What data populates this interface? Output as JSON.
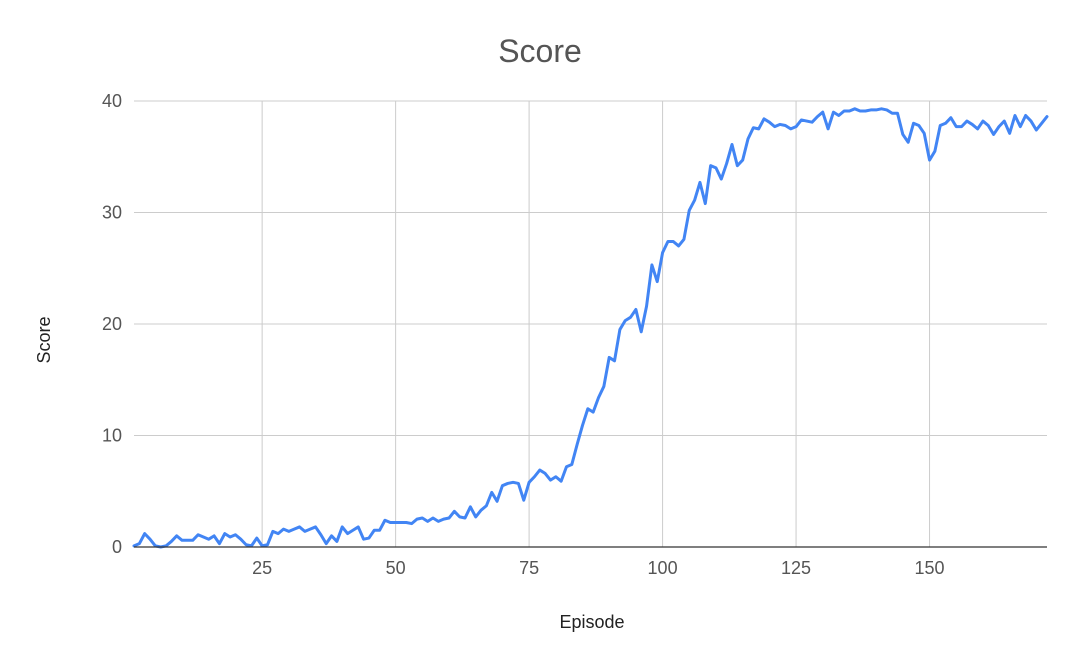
{
  "chart_data": {
    "type": "line",
    "title": "Score",
    "xlabel": "Episode",
    "ylabel": "Score",
    "xlim": [
      1,
      172
    ],
    "ylim": [
      0,
      40
    ],
    "x_ticks": [
      25,
      50,
      75,
      100,
      125,
      150
    ],
    "y_ticks": [
      0,
      10,
      20,
      30,
      40
    ],
    "grid": true,
    "legend": "none",
    "line_color": "#4285f4",
    "series": [
      {
        "x": [
          1,
          2,
          3,
          4,
          5,
          6,
          7,
          8,
          9,
          10,
          11,
          12,
          13,
          14,
          15,
          16,
          17,
          18,
          19,
          20,
          21,
          22,
          23,
          24,
          25,
          26,
          27,
          28,
          29,
          30,
          31,
          32,
          33,
          34,
          35,
          36,
          37,
          38,
          39,
          40,
          41,
          42,
          43,
          44,
          45,
          46,
          47,
          48,
          49,
          50,
          51,
          52,
          53,
          54,
          55,
          56,
          57,
          58,
          59,
          60,
          61,
          62,
          63,
          64,
          65,
          66,
          67,
          68,
          69,
          70,
          71,
          72,
          73,
          74,
          75,
          76,
          77,
          78,
          79,
          80,
          81,
          82,
          83,
          84,
          85,
          86,
          87,
          88,
          89,
          90,
          91,
          92,
          93,
          94,
          95,
          96,
          97,
          98,
          99,
          100,
          101,
          102,
          103,
          104,
          105,
          106,
          107,
          108,
          109,
          110,
          111,
          112,
          113,
          114,
          115,
          116,
          117,
          118,
          119,
          120,
          121,
          122,
          123,
          124,
          125,
          126,
          127,
          128,
          129,
          130,
          131,
          132,
          133,
          134,
          135,
          136,
          137,
          138,
          139,
          140,
          141,
          142,
          143,
          144,
          145,
          146,
          147,
          148,
          149,
          150,
          151,
          152,
          153,
          154,
          155,
          156,
          157,
          158,
          159,
          160,
          161,
          162,
          163,
          164,
          165,
          166,
          167,
          168,
          169,
          170,
          171,
          172
        ],
        "y": [
          0.1,
          0.3,
          1.2,
          0.7,
          0.1,
          0.0,
          0.1,
          0.5,
          1.0,
          0.6,
          0.6,
          0.6,
          1.1,
          0.9,
          0.7,
          1.0,
          0.3,
          1.2,
          0.9,
          1.1,
          0.7,
          0.2,
          0.1,
          0.8,
          0.1,
          0.2,
          1.4,
          1.2,
          1.6,
          1.4,
          1.6,
          1.8,
          1.4,
          1.6,
          1.8,
          1.1,
          0.3,
          1.0,
          0.5,
          1.8,
          1.2,
          1.5,
          1.8,
          0.7,
          0.8,
          1.5,
          1.5,
          2.4,
          2.2,
          2.2,
          2.2,
          2.2,
          2.1,
          2.5,
          2.6,
          2.3,
          2.6,
          2.3,
          2.5,
          2.6,
          3.2,
          2.7,
          2.6,
          3.6,
          2.7,
          3.3,
          3.7,
          4.9,
          4.1,
          5.5,
          5.7,
          5.8,
          5.7,
          4.2,
          5.8,
          6.3,
          6.9,
          6.6,
          6.0,
          6.3,
          5.9,
          7.2,
          7.4,
          9.2,
          10.9,
          12.4,
          12.1,
          13.4,
          14.4,
          17.0,
          16.7,
          19.5,
          20.3,
          20.6,
          21.3,
          19.3,
          21.6,
          25.3,
          23.8,
          26.4,
          27.4,
          27.4,
          27.0,
          27.6,
          30.2,
          31.1,
          32.7,
          30.8,
          34.2,
          34.0,
          33.0,
          34.4,
          36.1,
          34.2,
          34.7,
          36.6,
          37.6,
          37.5,
          38.4,
          38.1,
          37.7,
          37.9,
          37.8,
          37.5,
          37.7,
          38.3,
          38.2,
          38.1,
          38.6,
          39.0,
          37.5,
          39.0,
          38.7,
          39.1,
          39.1,
          39.3,
          39.1,
          39.1,
          39.2,
          39.2,
          39.3,
          39.2,
          38.9,
          38.9,
          37.0,
          36.3,
          38.0,
          37.8,
          37.1,
          34.7,
          35.5,
          37.8,
          38.0,
          38.5,
          37.7,
          37.7,
          38.2,
          37.9,
          37.5,
          38.2,
          37.8,
          37.0,
          37.7,
          38.2,
          37.1,
          38.7,
          37.7,
          38.7,
          38.2,
          37.4,
          38.0,
          38.6
        ]
      }
    ]
  }
}
